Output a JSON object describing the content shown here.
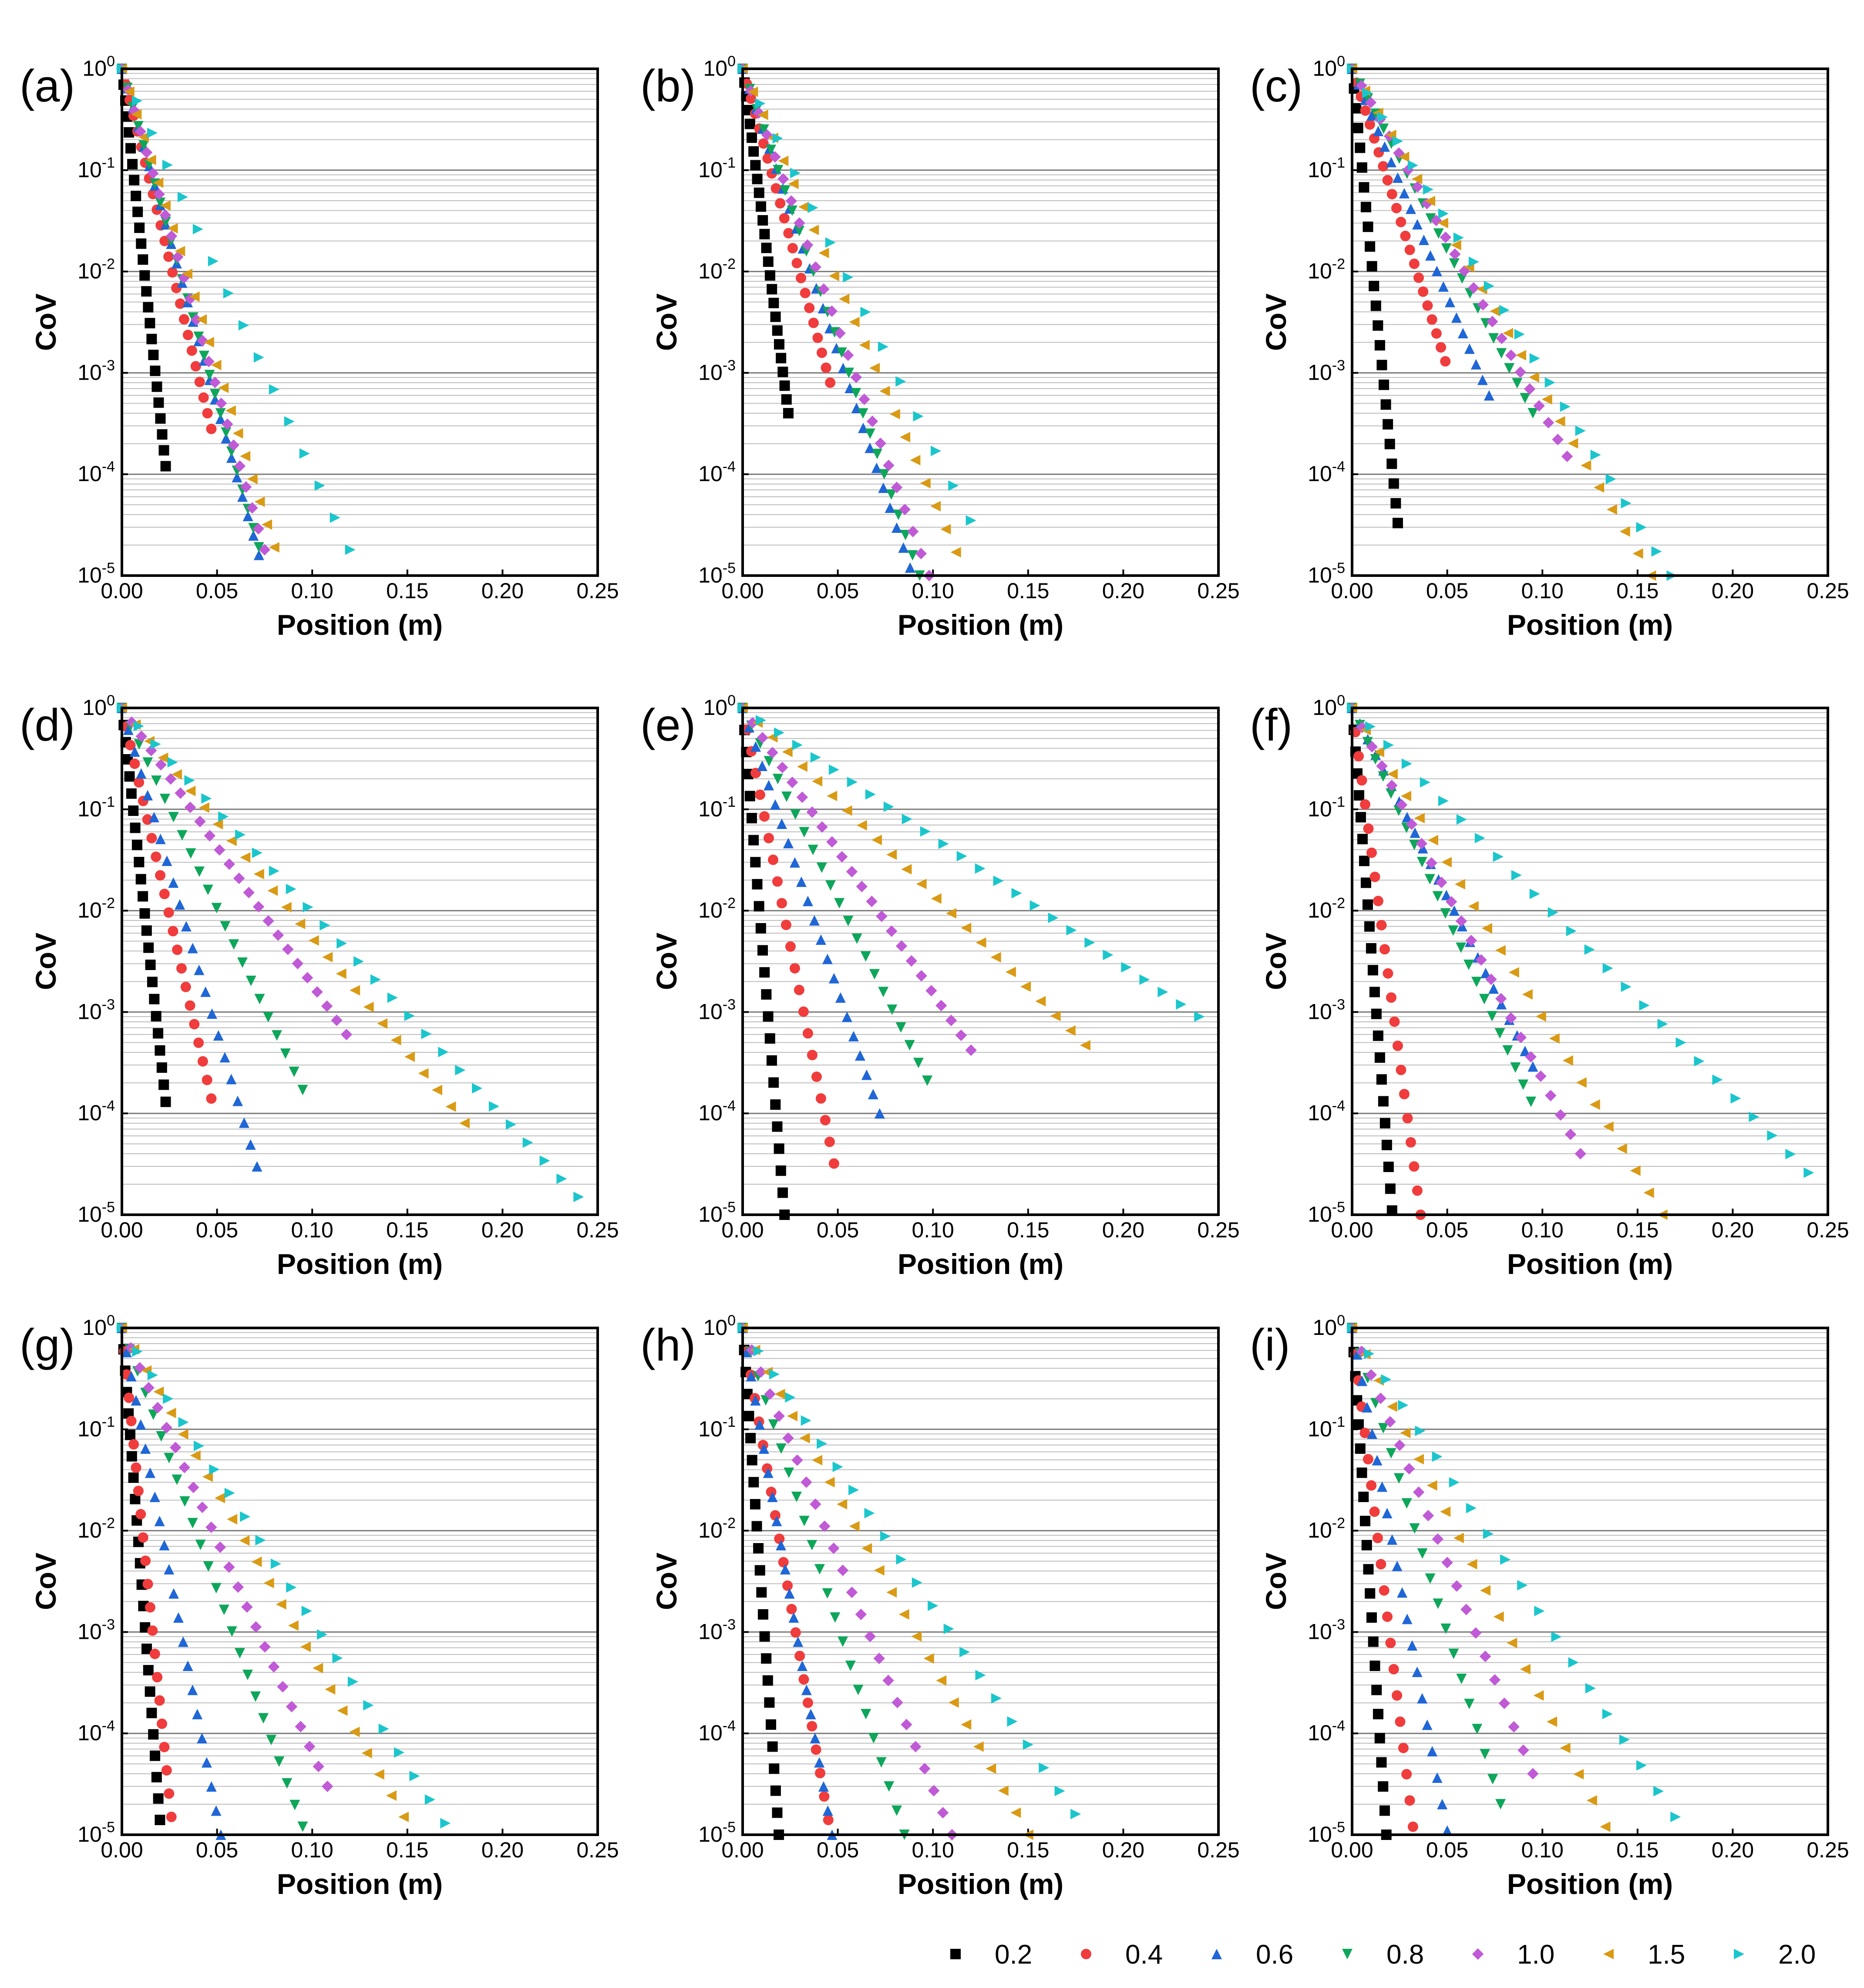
{
  "chart_data": {
    "type": "scatter",
    "layout": "3x3 grid of panels",
    "xlabel": "Position (m)",
    "ylabel": "CoV",
    "xlim": [
      0,
      0.25
    ],
    "ylim": [
      1e-05,
      1
    ],
    "yscale": "log",
    "xticks": [
      "0.00",
      "0.05",
      "0.10",
      "0.15",
      "0.20",
      "0.25"
    ],
    "yticks": [
      {
        "base": "10",
        "exp": "0",
        "value": 1
      },
      {
        "base": "10",
        "exp": "-1",
        "value": 0.1
      },
      {
        "base": "10",
        "exp": "-2",
        "value": 0.01
      },
      {
        "base": "10",
        "exp": "-3",
        "value": 0.001
      },
      {
        "base": "10",
        "exp": "-4",
        "value": 0.0001
      },
      {
        "base": "10",
        "exp": "-5",
        "value": 1e-05
      }
    ],
    "grid": "horizontal",
    "legend": {
      "placement": "bottom",
      "entries": [
        {
          "label": "0.2",
          "marker": "square",
          "color": "#000000"
        },
        {
          "label": "0.4",
          "marker": "circle",
          "color": "#f03c3c"
        },
        {
          "label": "0.6",
          "marker": "triangle-up",
          "color": "#1f66d6"
        },
        {
          "label": "0.8",
          "marker": "triangle-down",
          "color": "#0ea65a"
        },
        {
          "label": "1.0",
          "marker": "diamond",
          "color": "#c05ad6"
        },
        {
          "label": "1.5",
          "marker": "triangle-left",
          "color": "#d99a14"
        },
        {
          "label": "2.0",
          "marker": "triangle-right",
          "color": "#1ac6cc"
        }
      ]
    },
    "series_note": "each series is a straight decay in log space; values given as CoV start 1.0 at x=0 down to end_cov at end_x with n markers",
    "panels": [
      {
        "label": "(a)",
        "series": [
          {
            "name": "0.2",
            "end_x": 0.023,
            "end_cov": 0.00012,
            "n": 26
          },
          {
            "name": "0.4",
            "end_x": 0.047,
            "end_cov": 0.00028,
            "n": 24
          },
          {
            "name": "0.6",
            "end_x": 0.072,
            "end_cov": 1.6e-05,
            "n": 26
          },
          {
            "name": "0.8",
            "end_x": 0.072,
            "end_cov": 1.9e-05,
            "n": 26
          },
          {
            "name": "1.0",
            "end_x": 0.075,
            "end_cov": 1.8e-05,
            "n": 24
          },
          {
            "name": "1.5",
            "end_x": 0.08,
            "end_cov": 1.9e-05,
            "n": 22
          },
          {
            "name": "2.0",
            "end_x": 0.12,
            "end_cov": 1.8e-05,
            "n": 16
          }
        ]
      },
      {
        "label": "(b)",
        "series": [
          {
            "name": "0.2",
            "end_x": 0.024,
            "end_cov": 0.0004,
            "n": 26
          },
          {
            "name": "0.4",
            "end_x": 0.046,
            "end_cov": 0.0008,
            "n": 22
          },
          {
            "name": "0.6",
            "end_x": 0.088,
            "end_cov": 1.2e-05,
            "n": 26
          },
          {
            "name": "0.8",
            "end_x": 0.093,
            "end_cov": 1e-05,
            "n": 26
          },
          {
            "name": "1.0",
            "end_x": 0.098,
            "end_cov": 1e-05,
            "n": 24
          },
          {
            "name": "1.5",
            "end_x": 0.112,
            "end_cov": 1.7e-05,
            "n": 22
          },
          {
            "name": "2.0",
            "end_x": 0.12,
            "end_cov": 3.5e-05,
            "n": 14
          }
        ]
      },
      {
        "label": "(c)",
        "series": [
          {
            "name": "0.2",
            "end_x": 0.024,
            "end_cov": 3.3e-05,
            "n": 24
          },
          {
            "name": "0.4",
            "end_x": 0.049,
            "end_cov": 0.0013,
            "n": 22
          },
          {
            "name": "0.6",
            "end_x": 0.072,
            "end_cov": 0.0006,
            "n": 22
          },
          {
            "name": "0.8",
            "end_x": 0.095,
            "end_cov": 0.0004,
            "n": 24
          },
          {
            "name": "1.0",
            "end_x": 0.113,
            "end_cov": 0.00015,
            "n": 24
          },
          {
            "name": "1.5",
            "end_x": 0.157,
            "end_cov": 1e-05,
            "n": 24
          },
          {
            "name": "2.0",
            "end_x": 0.168,
            "end_cov": 1e-05,
            "n": 22
          }
        ]
      },
      {
        "label": "(d)",
        "series": [
          {
            "name": "0.2",
            "end_x": 0.023,
            "end_cov": 0.00013,
            "n": 24
          },
          {
            "name": "0.4",
            "end_x": 0.047,
            "end_cov": 0.00014,
            "n": 22
          },
          {
            "name": "0.6",
            "end_x": 0.071,
            "end_cov": 3e-05,
            "n": 22
          },
          {
            "name": "0.8",
            "end_x": 0.095,
            "end_cov": 0.00017,
            "n": 22
          },
          {
            "name": "1.0",
            "end_x": 0.118,
            "end_cov": 0.0006,
            "n": 24
          },
          {
            "name": "1.5",
            "end_x": 0.18,
            "end_cov": 8e-05,
            "n": 26
          },
          {
            "name": "2.0",
            "end_x": 0.24,
            "end_cov": 1.5e-05,
            "n": 28
          }
        ]
      },
      {
        "label": "(e)",
        "series": [
          {
            "name": "0.2",
            "end_x": 0.022,
            "end_cov": 1e-05,
            "n": 24
          },
          {
            "name": "0.4",
            "end_x": 0.048,
            "end_cov": 3.2e-05,
            "n": 22
          },
          {
            "name": "0.6",
            "end_x": 0.072,
            "end_cov": 0.0001,
            "n": 22
          },
          {
            "name": "0.8",
            "end_x": 0.097,
            "end_cov": 0.00021,
            "n": 22
          },
          {
            "name": "1.0",
            "end_x": 0.12,
            "end_cov": 0.00042,
            "n": 24
          },
          {
            "name": "1.5",
            "end_x": 0.18,
            "end_cov": 0.00047,
            "n": 24
          },
          {
            "name": "2.0",
            "end_x": 0.24,
            "end_cov": 0.0009,
            "n": 26
          }
        ]
      },
      {
        "label": "(f)",
        "series": [
          {
            "name": "0.2",
            "end_x": 0.021,
            "end_cov": 1.1e-05,
            "n": 24
          },
          {
            "name": "0.4",
            "end_x": 0.036,
            "end_cov": 1e-05,
            "n": 22
          },
          {
            "name": "0.6",
            "end_x": 0.095,
            "end_cov": 0.00029,
            "n": 24
          },
          {
            "name": "0.8",
            "end_x": 0.094,
            "end_cov": 0.00013,
            "n": 24
          },
          {
            "name": "1.0",
            "end_x": 0.12,
            "end_cov": 4e-05,
            "n": 24
          },
          {
            "name": "1.5",
            "end_x": 0.163,
            "end_cov": 1e-05,
            "n": 24
          },
          {
            "name": "2.0",
            "end_x": 0.24,
            "end_cov": 2.6e-05,
            "n": 26
          }
        ]
      },
      {
        "label": "(g)",
        "series": [
          {
            "name": "0.2",
            "end_x": 0.02,
            "end_cov": 1.4e-05,
            "n": 24
          },
          {
            "name": "0.4",
            "end_x": 0.026,
            "end_cov": 1.5e-05,
            "n": 22
          },
          {
            "name": "0.6",
            "end_x": 0.052,
            "end_cov": 1e-05,
            "n": 22
          },
          {
            "name": "0.8",
            "end_x": 0.095,
            "end_cov": 1.2e-05,
            "n": 24
          },
          {
            "name": "1.0",
            "end_x": 0.108,
            "end_cov": 3e-05,
            "n": 24
          },
          {
            "name": "1.5",
            "end_x": 0.148,
            "end_cov": 1.5e-05,
            "n": 24
          },
          {
            "name": "2.0",
            "end_x": 0.17,
            "end_cov": 1.3e-05,
            "n": 22
          }
        ]
      },
      {
        "label": "(h)",
        "series": [
          {
            "name": "0.2",
            "end_x": 0.019,
            "end_cov": 1e-05,
            "n": 24
          },
          {
            "name": "0.4",
            "end_x": 0.045,
            "end_cov": 1.4e-05,
            "n": 22
          },
          {
            "name": "0.6",
            "end_x": 0.047,
            "end_cov": 1e-05,
            "n": 22
          },
          {
            "name": "0.8",
            "end_x": 0.085,
            "end_cov": 1e-05,
            "n": 22
          },
          {
            "name": "1.0",
            "end_x": 0.11,
            "end_cov": 1e-05,
            "n": 24
          },
          {
            "name": "1.5",
            "end_x": 0.15,
            "end_cov": 1e-05,
            "n": 24
          },
          {
            "name": "2.0",
            "end_x": 0.175,
            "end_cov": 1.6e-05,
            "n": 22
          }
        ]
      },
      {
        "label": "(i)",
        "series": [
          {
            "name": "0.2",
            "end_x": 0.018,
            "end_cov": 1e-05,
            "n": 22
          },
          {
            "name": "0.4",
            "end_x": 0.032,
            "end_cov": 1.2e-05,
            "n": 20
          },
          {
            "name": "0.6",
            "end_x": 0.05,
            "end_cov": 1.1e-05,
            "n": 20
          },
          {
            "name": "0.8",
            "end_x": 0.078,
            "end_cov": 2e-05,
            "n": 20
          },
          {
            "name": "1.0",
            "end_x": 0.095,
            "end_cov": 4e-05,
            "n": 20
          },
          {
            "name": "1.5",
            "end_x": 0.133,
            "end_cov": 1.2e-05,
            "n": 20
          },
          {
            "name": "2.0",
            "end_x": 0.17,
            "end_cov": 1.5e-05,
            "n": 20
          }
        ]
      }
    ]
  }
}
